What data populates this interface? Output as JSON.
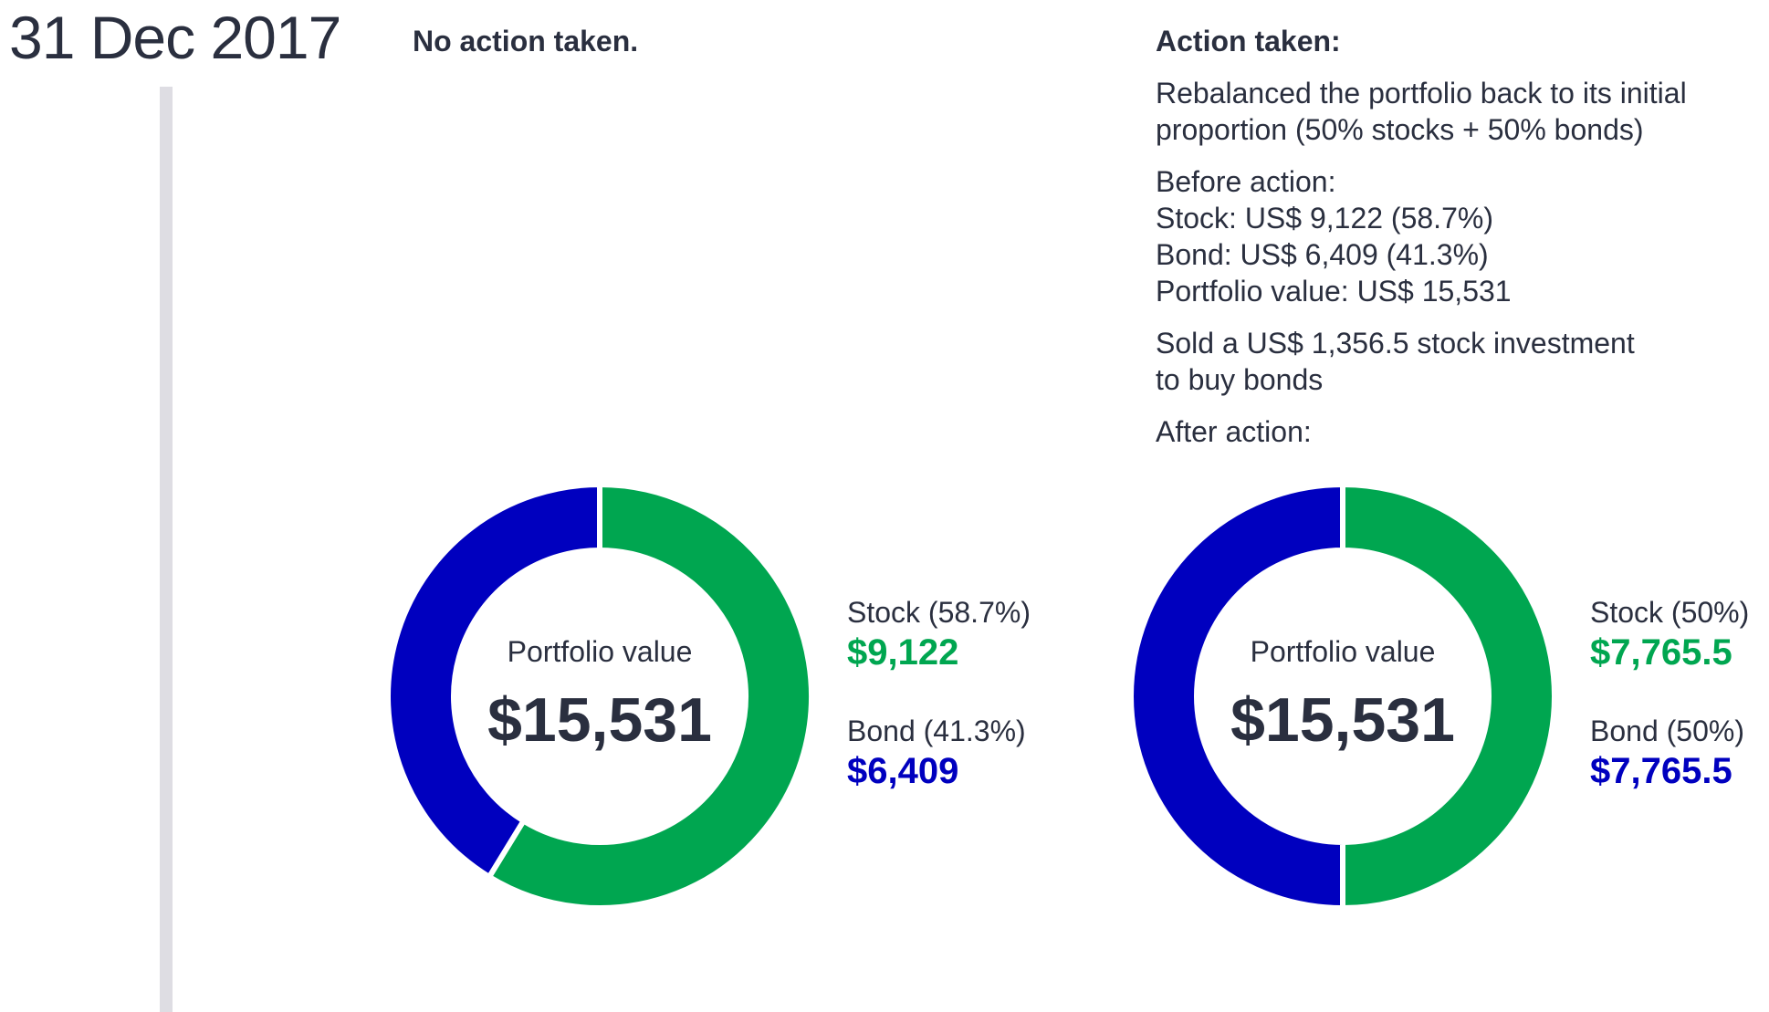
{
  "date": "31 Dec 2017",
  "left_panel": {
    "heading": "No action taken."
  },
  "right_panel": {
    "heading": "Action taken:",
    "description": {
      "paragraph1": [
        "Rebalanced the portfolio back to its initial",
        "proportion (50% stocks + 50% bonds)"
      ],
      "paragraph2": [
        "Before action:",
        "Stock: US$ 9,122 (58.7%)",
        "Bond: US$ 6,409 (41.3%)",
        "Portfolio value: US$ 15,531"
      ],
      "paragraph3": [
        "Sold a US$ 1,356.5 stock investment",
        "to buy bonds"
      ],
      "paragraph4": [
        "After action:"
      ]
    }
  },
  "colors": {
    "stock": "#00a650",
    "bond": "#0000bf",
    "text": "#2a2f3f"
  },
  "chart_data": [
    {
      "type": "pie",
      "donut": true,
      "center_label": "Portfolio value",
      "center_value": "$15,531",
      "slices": [
        {
          "label": "Stock (58.7%)",
          "value": 9122,
          "value_label": "$9,122",
          "color": "#00a650"
        },
        {
          "label": "Bond (41.3%)",
          "value": 6409,
          "value_label": "$6,409",
          "color": "#0000bf"
        }
      ]
    },
    {
      "type": "pie",
      "donut": true,
      "center_label": "Portfolio value",
      "center_value": "$15,531",
      "slices": [
        {
          "label": "Stock (50%)",
          "value": 7765.5,
          "value_label": "$7,765.5",
          "color": "#00a650"
        },
        {
          "label": "Bond (50%)",
          "value": 7765.5,
          "value_label": "$7,765.5",
          "color": "#0000bf"
        }
      ]
    }
  ]
}
